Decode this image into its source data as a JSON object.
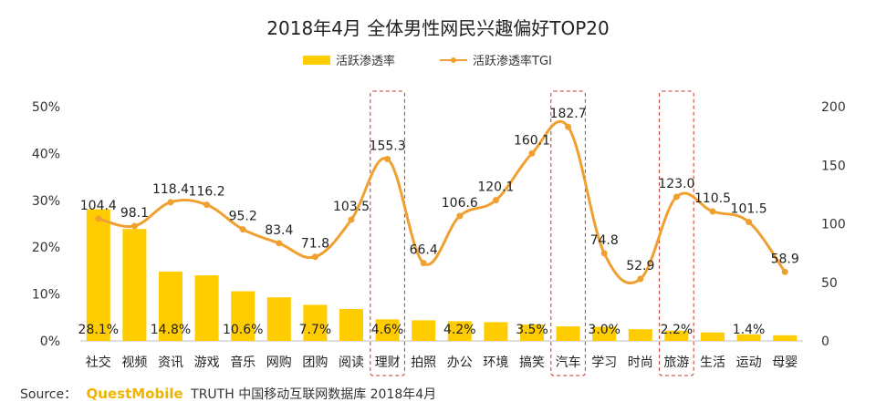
{
  "chart_data": {
    "type": "bar",
    "title": "2018年4月 全体男性网民兴趣偏好TOP20",
    "categories": [
      "社交",
      "视频",
      "资讯",
      "游戏",
      "音乐",
      "网购",
      "团购",
      "阅读",
      "理财",
      "拍照",
      "办公",
      "环境",
      "搞笑",
      "汽车",
      "学习",
      "时尚",
      "旅游",
      "生活",
      "运动",
      "母婴"
    ],
    "series": [
      {
        "name": "活跃渗透率",
        "type": "bar",
        "axis": "left",
        "color": "#ffcc00",
        "values": [
          28.1,
          23.9,
          14.8,
          14.0,
          10.6,
          9.3,
          7.7,
          6.8,
          4.6,
          4.4,
          4.2,
          4.0,
          3.5,
          3.1,
          3.0,
          2.5,
          2.2,
          1.8,
          1.4,
          1.2
        ],
        "labels": [
          "28.1%",
          "",
          "14.8%",
          "",
          "10.6%",
          "",
          "7.7%",
          "",
          "4.6%",
          "",
          "4.2%",
          "",
          "3.5%",
          "",
          "3.0%",
          "",
          "2.2%",
          "",
          "1.4%",
          ""
        ]
      },
      {
        "name": "活跃渗透率TGI",
        "type": "line",
        "axis": "right",
        "color": "#f0a030",
        "values": [
          104.4,
          98.1,
          118.4,
          116.2,
          95.2,
          83.4,
          71.8,
          103.5,
          155.3,
          66.4,
          106.6,
          120.1,
          160.1,
          182.7,
          74.8,
          52.9,
          123.0,
          110.5,
          101.5,
          58.9
        ],
        "labels": [
          "104.4",
          "98.1",
          "118.4",
          "116.2",
          "95.2",
          "83.4",
          "71.8",
          "103.5",
          "155.3",
          "66.4",
          "106.6",
          "120.1",
          "160.1",
          "182.7",
          "74.8",
          "52.9",
          "123.0",
          "110.5",
          "101.5",
          "58.9"
        ]
      }
    ],
    "left_axis": {
      "min": 0,
      "max": 50,
      "ticks": [
        "0%",
        "10%",
        "20%",
        "30%",
        "40%",
        "50%"
      ]
    },
    "right_axis": {
      "min": 0,
      "max": 200,
      "ticks": [
        "0",
        "50",
        "100",
        "150",
        "200"
      ]
    },
    "highlighted_categories": [
      "理财",
      "汽车",
      "旅游"
    ],
    "legend": [
      "活跃渗透率",
      "活跃渗透率TGI"
    ]
  },
  "footer": {
    "source_label": "Source：",
    "brand": "QuestMobile",
    "source_text": "TRUTH 中国移动互联网数据库 2018年4月"
  }
}
